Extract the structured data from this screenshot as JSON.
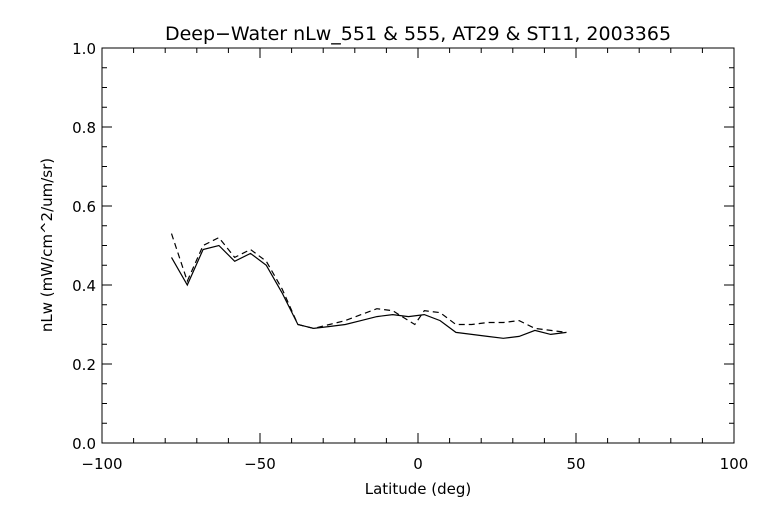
{
  "chart_data": {
    "type": "line",
    "title": "Deep−Water nLw_551 & 555, AT29 & ST11, 2003365",
    "xlabel": "Latitude (deg)",
    "ylabel": "nLw (mW/cm^2/um/sr)",
    "xlim": [
      -100,
      100
    ],
    "ylim": [
      0.0,
      1.0
    ],
    "xticks": [
      -100,
      -50,
      0,
      50,
      100
    ],
    "xtick_labels": [
      "−100",
      "−50",
      "0",
      "50",
      "100"
    ],
    "yticks": [
      0.0,
      0.2,
      0.4,
      0.6,
      0.8,
      1.0
    ],
    "ytick_labels": [
      "0.0",
      "0.2",
      "0.4",
      "0.6",
      "0.8",
      "1.0"
    ],
    "grid": false,
    "series": [
      {
        "style": "solid",
        "x": [
          -78,
          -73,
          -68,
          -63,
          -58,
          -53,
          -48,
          -43,
          -38,
          -33,
          -28,
          -23,
          -18,
          -13,
          -8,
          -3,
          2,
          7,
          12,
          17,
          22,
          27,
          32,
          37,
          42,
          47
        ],
        "y": [
          0.47,
          0.4,
          0.49,
          0.5,
          0.46,
          0.48,
          0.45,
          0.38,
          0.3,
          0.29,
          0.295,
          0.3,
          0.31,
          0.32,
          0.325,
          0.32,
          0.325,
          0.31,
          0.28,
          0.275,
          0.27,
          0.265,
          0.27,
          0.285,
          0.275,
          0.28
        ]
      },
      {
        "style": "dashed",
        "x": [
          -78,
          -73,
          -68,
          -63,
          -58,
          -53,
          -48,
          -43,
          -38,
          -33,
          -28,
          -23,
          -18,
          -13,
          -8,
          -3,
          -1,
          2,
          7,
          12,
          17,
          22,
          27,
          32,
          37,
          42,
          47
        ],
        "y": [
          0.53,
          0.41,
          0.5,
          0.52,
          0.47,
          0.49,
          0.46,
          0.39,
          0.3,
          0.29,
          0.3,
          0.31,
          0.325,
          0.34,
          0.335,
          0.31,
          0.3,
          0.335,
          0.33,
          0.3,
          0.3,
          0.305,
          0.305,
          0.31,
          0.29,
          0.285,
          0.28
        ]
      }
    ]
  }
}
